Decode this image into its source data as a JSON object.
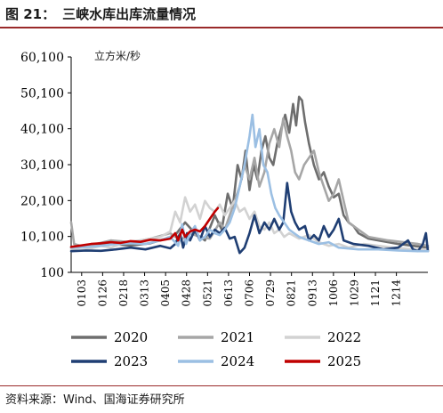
{
  "figure": {
    "number": "图 21：",
    "title": "三峡水库出库流量情况",
    "source": "资料来源：Wind、国海证券研究所"
  },
  "chart_data": {
    "type": "line",
    "unit": "立方米/秒",
    "ylim": [
      100,
      60100
    ],
    "yticks": [
      "60,100",
      "50,100",
      "40,100",
      "30,100",
      "20,100",
      "10,100",
      "100"
    ],
    "ytick_values": [
      60100,
      50100,
      40100,
      30100,
      20100,
      10100,
      100
    ],
    "xticks": [
      "0103",
      "0126",
      "0218",
      "0313",
      "0405",
      "0428",
      "0521",
      "0613",
      "0706",
      "0729",
      "0821",
      "0913",
      "1006",
      "1029",
      "1121",
      "1214"
    ],
    "grid": false,
    "legend_position": "bottom",
    "series": [
      {
        "name": "2020",
        "color": "#6e6e6e",
        "points": [
          [
            0,
            7000
          ],
          [
            10,
            7200
          ],
          [
            25,
            7800
          ],
          [
            40,
            8000
          ],
          [
            60,
            7600
          ],
          [
            80,
            8200
          ],
          [
            95,
            9500
          ],
          [
            105,
            10500
          ],
          [
            115,
            14000
          ],
          [
            125,
            11000
          ],
          [
            135,
            9000
          ],
          [
            145,
            16000
          ],
          [
            152,
            12000
          ],
          [
            158,
            22000
          ],
          [
            163,
            18000
          ],
          [
            168,
            30000
          ],
          [
            172,
            26000
          ],
          [
            176,
            34000
          ],
          [
            180,
            23000
          ],
          [
            184,
            30000
          ],
          [
            188,
            26000
          ],
          [
            192,
            34000
          ],
          [
            196,
            38000
          ],
          [
            200,
            32000
          ],
          [
            204,
            30000
          ],
          [
            208,
            36000
          ],
          [
            212,
            40000
          ],
          [
            216,
            44000
          ],
          [
            220,
            39000
          ],
          [
            224,
            47000
          ],
          [
            227,
            41000
          ],
          [
            230,
            49000
          ],
          [
            233,
            48000
          ],
          [
            236,
            42000
          ],
          [
            240,
            36000
          ],
          [
            245,
            30000
          ],
          [
            250,
            26000
          ],
          [
            255,
            28000
          ],
          [
            260,
            24000
          ],
          [
            265,
            21000
          ],
          [
            270,
            22000
          ],
          [
            275,
            16000
          ],
          [
            280,
            14000
          ],
          [
            285,
            13000
          ],
          [
            290,
            11000
          ],
          [
            300,
            9500
          ],
          [
            310,
            9000
          ],
          [
            330,
            8000
          ],
          [
            345,
            7500
          ],
          [
            360,
            7000
          ]
        ]
      },
      {
        "name": "2021",
        "color": "#a6a6a6",
        "points": [
          [
            0,
            14000
          ],
          [
            3,
            8000
          ],
          [
            10,
            7500
          ],
          [
            25,
            8000
          ],
          [
            40,
            9000
          ],
          [
            60,
            8500
          ],
          [
            80,
            9500
          ],
          [
            100,
            11000
          ],
          [
            110,
            9000
          ],
          [
            120,
            11000
          ],
          [
            130,
            10000
          ],
          [
            140,
            9500
          ],
          [
            150,
            14000
          ],
          [
            155,
            12000
          ],
          [
            160,
            16000
          ],
          [
            165,
            20000
          ],
          [
            170,
            24000
          ],
          [
            175,
            30000
          ],
          [
            180,
            26000
          ],
          [
            185,
            32000
          ],
          [
            190,
            24000
          ],
          [
            195,
            28000
          ],
          [
            200,
            36000
          ],
          [
            205,
            40000
          ],
          [
            210,
            35000
          ],
          [
            214,
            43000
          ],
          [
            218,
            38000
          ],
          [
            222,
            34000
          ],
          [
            226,
            28000
          ],
          [
            230,
            26000
          ],
          [
            235,
            30000
          ],
          [
            240,
            32000
          ],
          [
            245,
            34000
          ],
          [
            250,
            28000
          ],
          [
            255,
            24000
          ],
          [
            260,
            20000
          ],
          [
            265,
            22000
          ],
          [
            270,
            26000
          ],
          [
            275,
            20000
          ],
          [
            280,
            14000
          ],
          [
            290,
            12000
          ],
          [
            300,
            10000
          ],
          [
            310,
            9500
          ],
          [
            320,
            9000
          ],
          [
            335,
            8500
          ],
          [
            350,
            8000
          ],
          [
            360,
            7500
          ]
        ]
      },
      {
        "name": "2022",
        "color": "#d2d2d2",
        "points": [
          [
            0,
            6500
          ],
          [
            10,
            7000
          ],
          [
            20,
            6800
          ],
          [
            30,
            7500
          ],
          [
            40,
            7000
          ],
          [
            55,
            8500
          ],
          [
            70,
            9000
          ],
          [
            90,
            10000
          ],
          [
            100,
            11500
          ],
          [
            105,
            17000
          ],
          [
            110,
            14000
          ],
          [
            115,
            21000
          ],
          [
            120,
            17000
          ],
          [
            125,
            19000
          ],
          [
            130,
            15000
          ],
          [
            135,
            20000
          ],
          [
            140,
            18000
          ],
          [
            145,
            17000
          ],
          [
            150,
            19000
          ],
          [
            155,
            16000
          ],
          [
            160,
            18000
          ],
          [
            165,
            20000
          ],
          [
            170,
            17000
          ],
          [
            175,
            18000
          ],
          [
            180,
            15000
          ],
          [
            185,
            17000
          ],
          [
            190,
            13000
          ],
          [
            195,
            12000
          ],
          [
            200,
            14000
          ],
          [
            205,
            11000
          ],
          [
            210,
            12000
          ],
          [
            215,
            10000
          ],
          [
            220,
            11000
          ],
          [
            230,
            9500
          ],
          [
            240,
            10500
          ],
          [
            250,
            8500
          ],
          [
            260,
            7500
          ],
          [
            270,
            8000
          ],
          [
            280,
            7000
          ],
          [
            295,
            8000
          ],
          [
            310,
            7500
          ],
          [
            325,
            7000
          ],
          [
            345,
            6500
          ],
          [
            360,
            6500
          ]
        ]
      },
      {
        "name": "2023",
        "color": "#1f3e73",
        "points": [
          [
            0,
            6000
          ],
          [
            15,
            6200
          ],
          [
            30,
            6100
          ],
          [
            45,
            6500
          ],
          [
            60,
            7000
          ],
          [
            75,
            6500
          ],
          [
            90,
            7500
          ],
          [
            100,
            6800
          ],
          [
            105,
            8000
          ],
          [
            110,
            11000
          ],
          [
            113,
            7000
          ],
          [
            117,
            11000
          ],
          [
            120,
            9000
          ],
          [
            125,
            12000
          ],
          [
            130,
            9000
          ],
          [
            135,
            13000
          ],
          [
            140,
            10000
          ],
          [
            145,
            12000
          ],
          [
            150,
            11000
          ],
          [
            155,
            12500
          ],
          [
            160,
            9500
          ],
          [
            165,
            10000
          ],
          [
            170,
            5500
          ],
          [
            175,
            7000
          ],
          [
            180,
            11000
          ],
          [
            185,
            16000
          ],
          [
            190,
            11000
          ],
          [
            195,
            14000
          ],
          [
            200,
            12000
          ],
          [
            205,
            15000
          ],
          [
            210,
            12000
          ],
          [
            214,
            14000
          ],
          [
            218,
            25000
          ],
          [
            222,
            17000
          ],
          [
            226,
            14000
          ],
          [
            230,
            12000
          ],
          [
            236,
            13000
          ],
          [
            240,
            9000
          ],
          [
            245,
            10500
          ],
          [
            250,
            9000
          ],
          [
            255,
            13000
          ],
          [
            260,
            10000
          ],
          [
            265,
            12000
          ],
          [
            270,
            15000
          ],
          [
            275,
            9000
          ],
          [
            285,
            8000
          ],
          [
            300,
            7500
          ],
          [
            315,
            6500
          ],
          [
            330,
            7000
          ],
          [
            340,
            9000
          ],
          [
            345,
            6500
          ],
          [
            350,
            6000
          ],
          [
            355,
            8000
          ],
          [
            358,
            11000
          ],
          [
            360,
            6000
          ]
        ]
      },
      {
        "name": "2024",
        "color": "#9bbfe3",
        "points": [
          [
            0,
            7000
          ],
          [
            15,
            7200
          ],
          [
            30,
            7500
          ],
          [
            45,
            8000
          ],
          [
            60,
            8200
          ],
          [
            75,
            8000
          ],
          [
            90,
            9000
          ],
          [
            100,
            10000
          ],
          [
            108,
            7500
          ],
          [
            112,
            13500
          ],
          [
            116,
            8000
          ],
          [
            120,
            11000
          ],
          [
            125,
            13000
          ],
          [
            130,
            9000
          ],
          [
            135,
            10000
          ],
          [
            140,
            12000
          ],
          [
            145,
            11000
          ],
          [
            150,
            10500
          ],
          [
            155,
            12000
          ],
          [
            160,
            14000
          ],
          [
            165,
            18000
          ],
          [
            170,
            24000
          ],
          [
            175,
            30000
          ],
          [
            180,
            38000
          ],
          [
            183,
            44000
          ],
          [
            186,
            35000
          ],
          [
            190,
            40000
          ],
          [
            194,
            30000
          ],
          [
            198,
            28000
          ],
          [
            202,
            22000
          ],
          [
            206,
            18000
          ],
          [
            210,
            16000
          ],
          [
            215,
            14000
          ],
          [
            220,
            12000
          ],
          [
            225,
            11000
          ],
          [
            230,
            10000
          ],
          [
            240,
            9000
          ],
          [
            250,
            8000
          ],
          [
            260,
            8500
          ],
          [
            270,
            7000
          ],
          [
            290,
            6500
          ],
          [
            310,
            6500
          ],
          [
            330,
            6200
          ],
          [
            350,
            6000
          ],
          [
            360,
            6000
          ]
        ]
      },
      {
        "name": "2025",
        "color": "#c00000",
        "points": [
          [
            0,
            7200
          ],
          [
            10,
            7600
          ],
          [
            20,
            8000
          ],
          [
            30,
            8200
          ],
          [
            40,
            8500
          ],
          [
            50,
            8300
          ],
          [
            60,
            8800
          ],
          [
            70,
            8600
          ],
          [
            80,
            9200
          ],
          [
            90,
            9000
          ],
          [
            100,
            9500
          ],
          [
            105,
            11000
          ],
          [
            108,
            9000
          ],
          [
            112,
            12000
          ],
          [
            115,
            10000
          ],
          [
            120,
            11500
          ],
          [
            125,
            12000
          ],
          [
            130,
            11500
          ],
          [
            135,
            13000
          ],
          [
            140,
            15000
          ],
          [
            145,
            17000
          ],
          [
            148,
            18000
          ]
        ]
      }
    ]
  }
}
